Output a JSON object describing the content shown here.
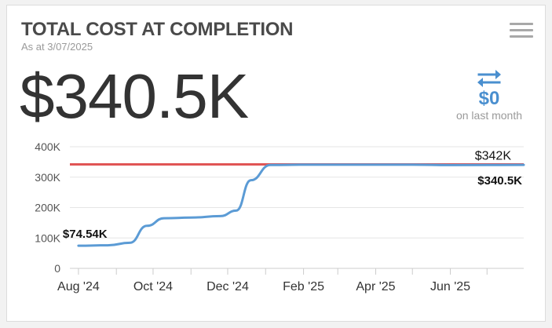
{
  "header": {
    "title": "TOTAL COST AT COMPLETION",
    "subtitle": "As at 3/07/2025"
  },
  "kpi": {
    "value": "$340.5K",
    "change_value": "$0",
    "change_label": "on last month",
    "change_icon": "swap-arrows-icon"
  },
  "menu": {
    "icon": "hamburger-menu-icon"
  },
  "colors": {
    "accent": "#4a8fcf",
    "forecast_line": "#5b9bd5",
    "budget_line": "#e05555"
  },
  "chart_data": {
    "type": "line",
    "ylim": [
      0,
      400000
    ],
    "yticks": [
      0,
      100000,
      200000,
      300000,
      400000
    ],
    "ytick_labels": [
      "0",
      "100K",
      "200K",
      "300K",
      "400K"
    ],
    "xlim": [
      "2024-07-25",
      "2025-07-31"
    ],
    "xtick_labels": [
      "Aug '24",
      "Oct '24",
      "Dec '24",
      "Feb '25",
      "Apr '25",
      "Jun '25"
    ],
    "xtick_dates": [
      "2024-08-01",
      "2024-10-01",
      "2024-12-01",
      "2025-02-01",
      "2025-04-01",
      "2025-06-01"
    ],
    "series": [
      {
        "role": "forecast",
        "color": "#5b9bd5",
        "x": [
          "2024-08-01",
          "2024-08-25",
          "2024-09-12",
          "2024-09-26",
          "2024-10-10",
          "2024-11-01",
          "2024-11-25",
          "2024-12-08",
          "2024-12-20",
          "2025-01-05",
          "2025-02-01",
          "2025-05-01",
          "2025-06-01",
          "2025-07-31"
        ],
        "y": [
          74540,
          76000,
          84000,
          140000,
          165000,
          167000,
          172000,
          190000,
          290000,
          340000,
          341000,
          341000,
          339500,
          340500
        ]
      },
      {
        "role": "budget",
        "color": "#e05555",
        "x": [
          "2024-07-25",
          "2025-07-31"
        ],
        "y": [
          342000,
          342000
        ]
      }
    ],
    "data_labels": [
      {
        "text": "$74.54K",
        "x": "2024-08-01",
        "y": 74540
      },
      {
        "text": "$342K",
        "x": "2025-07-31",
        "y": 342000
      },
      {
        "text": "$340.5K",
        "x": "2025-07-31",
        "y": 340500
      }
    ]
  }
}
